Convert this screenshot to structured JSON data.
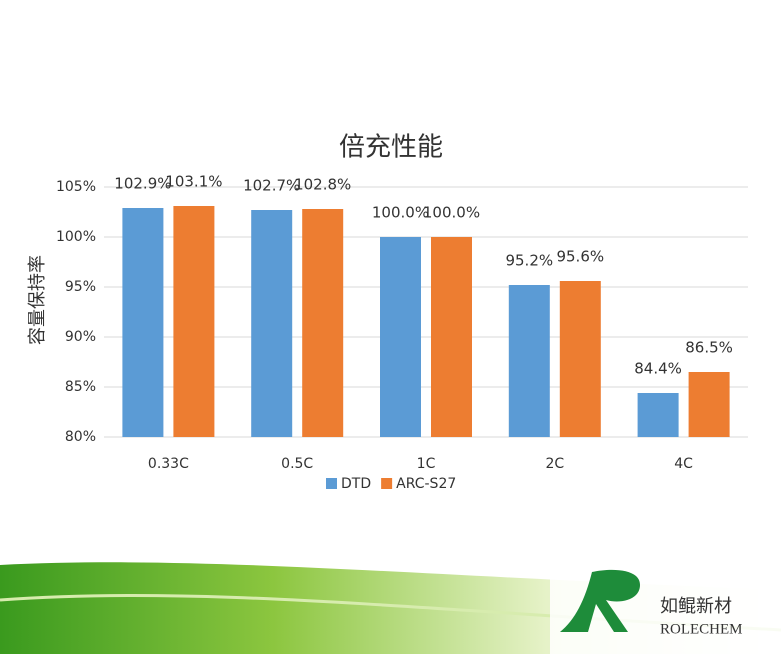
{
  "chart_data": {
    "type": "bar",
    "title": "倍充性能",
    "y_label": "容量保持率",
    "categories": [
      "0.33C",
      "0.5C",
      "1C",
      "2C",
      "4C"
    ],
    "series": [
      {
        "name": "DTD",
        "color": "#5b9bd5",
        "values": [
          102.9,
          102.7,
          100.0,
          95.2,
          84.4
        ],
        "value_labels": [
          "102.9%",
          "102.7%",
          "100.0%",
          "95.2%",
          "84.4%"
        ]
      },
      {
        "name": "ARC-S27",
        "color": "#ed7d31",
        "values": [
          103.1,
          102.8,
          100.0,
          95.6,
          86.5
        ],
        "value_labels": [
          "103.1%",
          "102.8%",
          "100.0%",
          "95.6%",
          "86.5%"
        ]
      }
    ],
    "ylim": [
      80,
      105
    ],
    "yticks": [
      {
        "value": 80,
        "label": "80%"
      },
      {
        "value": 85,
        "label": "85%"
      },
      {
        "value": 90,
        "label": "90%"
      },
      {
        "value": 95,
        "label": "95%"
      },
      {
        "value": 100,
        "label": "100%"
      },
      {
        "value": 105,
        "label": "105%"
      }
    ],
    "grid": true,
    "legend": "bottom"
  },
  "logo": {
    "name": "如鲲新材",
    "brand": "ROLECHEM"
  }
}
